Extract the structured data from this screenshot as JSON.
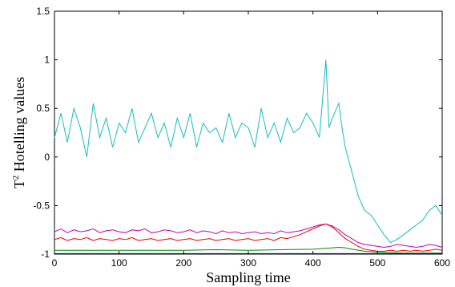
{
  "chart_data": {
    "type": "line",
    "title": "",
    "xlabel": "Sampling time",
    "ylabel_base": "T",
    "ylabel_sup": "2",
    "ylabel_rest": " Hotelling values",
    "xlim": [
      0,
      600
    ],
    "ylim": [
      -1,
      1.5
    ],
    "x_ticks": [
      0,
      100,
      200,
      300,
      400,
      500,
      600
    ],
    "y_ticks": [
      -1,
      -0.5,
      0,
      0.5,
      1,
      1.5
    ],
    "x_tick_labels": [
      "0",
      "100",
      "200",
      "300",
      "400",
      "500",
      "600"
    ],
    "y_tick_labels": [
      "-1",
      "-0.5",
      "0",
      "0.5",
      "1",
      "1.5"
    ],
    "grid": false,
    "legend": "none",
    "series": [
      {
        "color": "#17bdbd",
        "x": [
          0,
          10,
          20,
          30,
          40,
          50,
          60,
          70,
          80,
          90,
          100,
          110,
          120,
          130,
          140,
          150,
          160,
          170,
          180,
          190,
          200,
          210,
          220,
          230,
          240,
          250,
          260,
          270,
          280,
          290,
          300,
          310,
          320,
          330,
          340,
          350,
          360,
          370,
          380,
          390,
          400,
          410,
          415,
          420,
          425,
          430,
          440,
          445,
          450,
          460,
          470,
          480,
          490,
          500,
          510,
          520,
          530,
          540,
          550,
          560,
          570,
          580,
          590,
          600
        ],
        "y": [
          0.2,
          0.45,
          0.15,
          0.5,
          0.3,
          0.0,
          0.55,
          0.2,
          0.4,
          0.1,
          0.35,
          0.25,
          0.5,
          0.15,
          0.3,
          0.45,
          0.2,
          0.35,
          0.1,
          0.4,
          0.2,
          0.45,
          0.1,
          0.35,
          0.25,
          0.3,
          0.15,
          0.45,
          0.2,
          0.35,
          0.3,
          0.1,
          0.5,
          0.2,
          0.35,
          0.15,
          0.4,
          0.25,
          0.3,
          0.45,
          0.35,
          0.2,
          0.6,
          1.0,
          0.3,
          0.4,
          0.55,
          0.3,
          0.1,
          -0.15,
          -0.4,
          -0.55,
          -0.6,
          -0.7,
          -0.8,
          -0.88,
          -0.85,
          -0.8,
          -0.75,
          -0.7,
          -0.65,
          -0.55,
          -0.5,
          -0.6
        ]
      },
      {
        "color": "#bf00bf",
        "x": [
          0,
          10,
          20,
          30,
          40,
          50,
          60,
          70,
          80,
          90,
          100,
          110,
          120,
          130,
          140,
          150,
          160,
          170,
          180,
          190,
          200,
          210,
          220,
          230,
          240,
          250,
          260,
          270,
          280,
          290,
          300,
          310,
          320,
          330,
          340,
          350,
          360,
          370,
          380,
          390,
          400,
          410,
          420,
          430,
          440,
          450,
          460,
          470,
          480,
          490,
          500,
          510,
          520,
          530,
          540,
          550,
          560,
          570,
          580,
          590,
          600
        ],
        "y": [
          -0.77,
          -0.74,
          -0.78,
          -0.75,
          -0.77,
          -0.76,
          -0.74,
          -0.78,
          -0.76,
          -0.75,
          -0.77,
          -0.78,
          -0.75,
          -0.76,
          -0.74,
          -0.78,
          -0.77,
          -0.75,
          -0.76,
          -0.78,
          -0.77,
          -0.75,
          -0.78,
          -0.76,
          -0.77,
          -0.79,
          -0.76,
          -0.78,
          -0.77,
          -0.79,
          -0.78,
          -0.77,
          -0.79,
          -0.78,
          -0.79,
          -0.76,
          -0.78,
          -0.77,
          -0.76,
          -0.74,
          -0.72,
          -0.7,
          -0.69,
          -0.71,
          -0.75,
          -0.8,
          -0.84,
          -0.88,
          -0.9,
          -0.91,
          -0.92,
          -0.93,
          -0.92,
          -0.9,
          -0.91,
          -0.92,
          -0.93,
          -0.92,
          -0.9,
          -0.91,
          -0.93
        ]
      },
      {
        "color": "#ee0000",
        "x": [
          0,
          10,
          20,
          30,
          40,
          50,
          60,
          70,
          80,
          90,
          100,
          110,
          120,
          130,
          140,
          150,
          160,
          170,
          180,
          190,
          200,
          210,
          220,
          230,
          240,
          250,
          260,
          270,
          280,
          290,
          300,
          310,
          320,
          330,
          340,
          350,
          360,
          370,
          380,
          390,
          400,
          410,
          420,
          430,
          440,
          450,
          460,
          470,
          480,
          490,
          500,
          510,
          520,
          530,
          540,
          550,
          560,
          570,
          580,
          590,
          600
        ],
        "y": [
          -0.85,
          -0.83,
          -0.86,
          -0.84,
          -0.85,
          -0.83,
          -0.86,
          -0.84,
          -0.85,
          -0.86,
          -0.84,
          -0.85,
          -0.83,
          -0.86,
          -0.85,
          -0.84,
          -0.86,
          -0.85,
          -0.84,
          -0.86,
          -0.85,
          -0.84,
          -0.86,
          -0.85,
          -0.84,
          -0.86,
          -0.85,
          -0.84,
          -0.86,
          -0.85,
          -0.84,
          -0.86,
          -0.85,
          -0.84,
          -0.86,
          -0.83,
          -0.84,
          -0.82,
          -0.8,
          -0.77,
          -0.74,
          -0.71,
          -0.69,
          -0.72,
          -0.78,
          -0.84,
          -0.88,
          -0.92,
          -0.95,
          -0.96,
          -0.97,
          -0.97,
          -0.96,
          -0.97,
          -0.96,
          -0.97,
          -0.96,
          -0.97,
          -0.96,
          -0.95,
          -0.96
        ]
      },
      {
        "color": "#008800",
        "x": [
          0,
          50,
          100,
          150,
          200,
          250,
          300,
          350,
          400,
          420,
          440,
          450,
          460,
          480,
          500,
          520,
          540,
          560,
          580,
          600
        ],
        "y": [
          -0.96,
          -0.96,
          -0.96,
          -0.96,
          -0.96,
          -0.955,
          -0.96,
          -0.955,
          -0.95,
          -0.94,
          -0.93,
          -0.935,
          -0.95,
          -0.97,
          -0.98,
          -0.985,
          -0.99,
          -0.99,
          -0.99,
          -0.99
        ]
      },
      {
        "color": "#0000cc",
        "x": [
          0,
          100,
          200,
          300,
          400,
          500,
          600
        ],
        "y": [
          -0.995,
          -0.995,
          -0.995,
          -0.995,
          -0.995,
          -0.995,
          -0.995
        ]
      }
    ]
  }
}
